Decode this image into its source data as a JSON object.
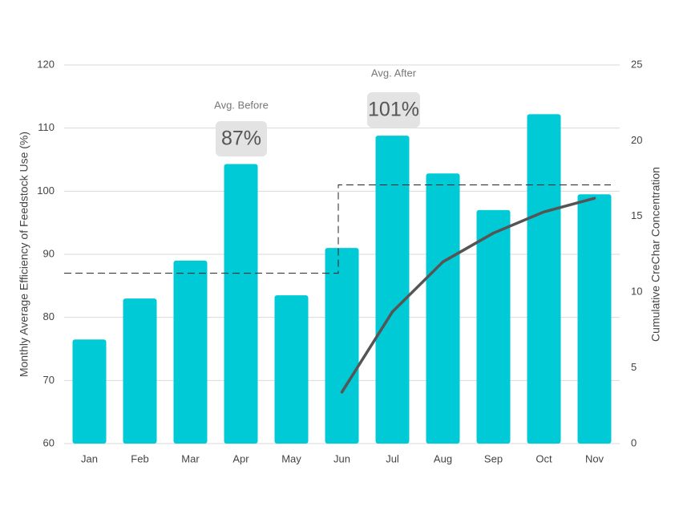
{
  "chart_data": {
    "type": "bar",
    "y_label": "Monthly Average Efficiency of Feedstock Use (%)",
    "y2_label": "Cumulative CreChar Concentration",
    "categories": [
      "Jan",
      "Feb",
      "Mar",
      "Apr",
      "May",
      "Jun",
      "Jul",
      "Aug",
      "Sep",
      "Oct",
      "Nov"
    ],
    "series": [
      {
        "type": "bar",
        "color": "#00cad6",
        "values": [
          76.5,
          83,
          89,
          104.3,
          83.5,
          91,
          108.8,
          102.8,
          97,
          112.2,
          99.5
        ]
      },
      {
        "type": "line",
        "axis": "y2",
        "color": "#555555",
        "values": [
          null,
          null,
          null,
          null,
          null,
          3.4,
          8.7,
          12.0,
          13.9,
          15.3,
          16.2
        ]
      }
    ],
    "annotations": [
      {
        "text": "Avg. Before",
        "value": 87,
        "value_label": "87%"
      },
      {
        "text": "Avg. After",
        "value": 101,
        "value_label": "101%"
      }
    ],
    "ylim": [
      60,
      120
    ],
    "yticks": [
      60,
      70,
      80,
      90,
      100,
      110,
      120
    ],
    "y2lim": [
      0,
      25
    ],
    "y2ticks": [
      0,
      5,
      10,
      15,
      20,
      25
    ],
    "grid": true
  }
}
